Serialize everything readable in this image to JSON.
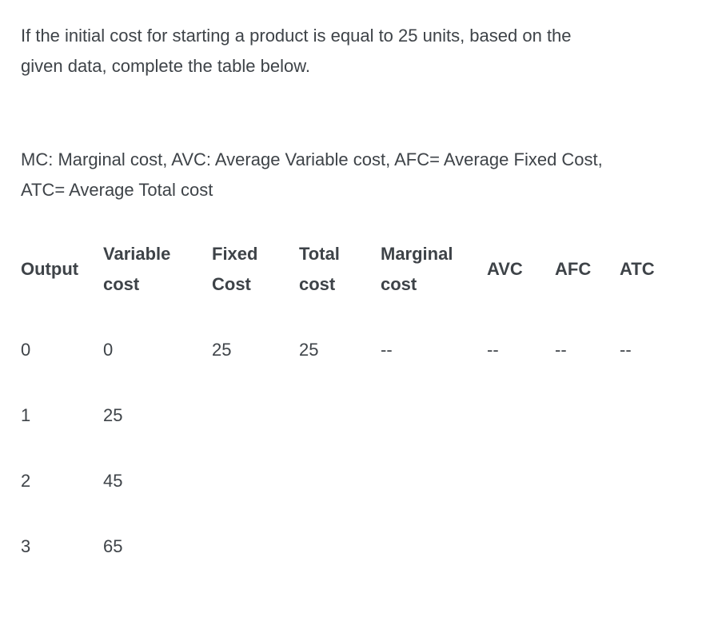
{
  "question": {
    "prompt": "If the initial cost for starting a product is equal to 25 units, based on the\ngiven data, complete the table below.",
    "legend": "MC: Marginal cost, AVC: Average Variable cost, AFC= Average Fixed Cost,\nATC= Average Total cost"
  },
  "table": {
    "headers": [
      "Output",
      "Variable\ncost",
      "Fixed\nCost",
      "Total\ncost",
      "Marginal\ncost",
      "AVC",
      "AFC",
      "ATC"
    ],
    "rows": [
      [
        "0",
        "0",
        "25",
        "25",
        "--",
        "--",
        "--",
        "--"
      ],
      [
        "1",
        "25",
        "",
        "",
        "",
        "",
        "",
        ""
      ],
      [
        "2",
        "45",
        "",
        "",
        "",
        "",
        "",
        ""
      ],
      [
        "3",
        "65",
        "",
        "",
        "",
        "",
        "",
        ""
      ]
    ]
  },
  "colors": {
    "text": "#3e4348",
    "background": "#ffffff"
  }
}
